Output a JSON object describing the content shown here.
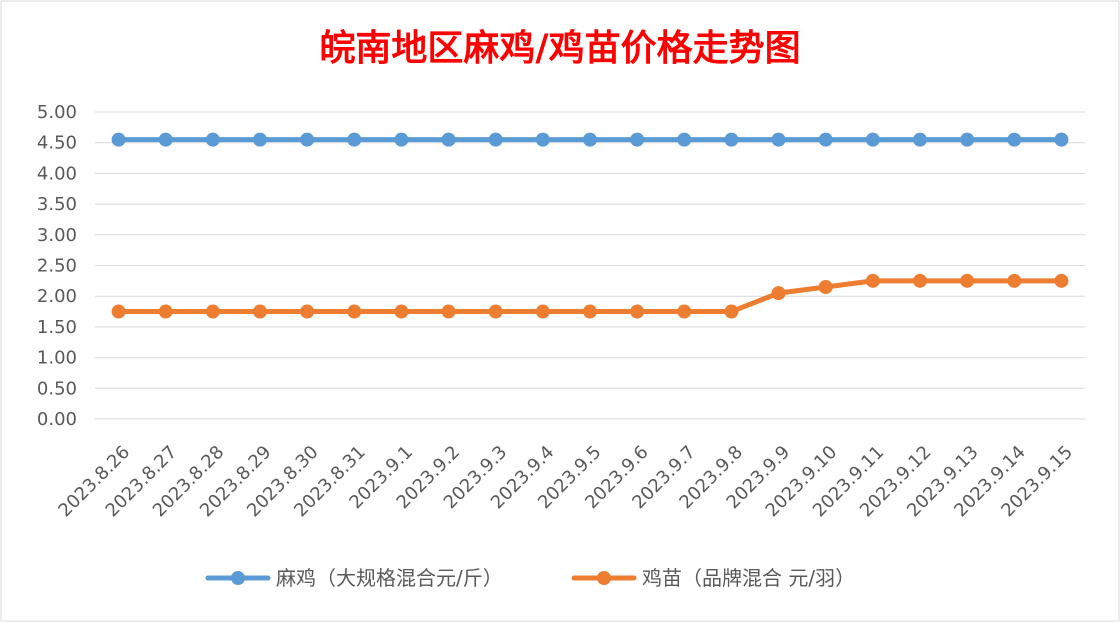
{
  "chart_data": {
    "type": "line",
    "title": "皖南地区麻鸡/鸡苗价格走势图",
    "categories": [
      "2023.8.26",
      "2023.8.27",
      "2023.8.28",
      "2023.8.29",
      "2023.8.30",
      "2023.8.31",
      "2023.9.1",
      "2023.9.2",
      "2023.9.3",
      "2023.9.4",
      "2023.9.5",
      "2023.9.6",
      "2023.9.7",
      "2023.9.8",
      "2023.9.9",
      "2023.9.10",
      "2023.9.11",
      "2023.9.12",
      "2023.9.13",
      "2023.9.14",
      "2023.9.15"
    ],
    "y_ticks": [
      "0.00",
      "0.50",
      "1.00",
      "1.50",
      "2.00",
      "2.50",
      "3.00",
      "3.50",
      "4.00",
      "4.50",
      "5.00"
    ],
    "ylim": [
      0,
      5
    ],
    "grid": true,
    "legend_position": "bottom",
    "series": [
      {
        "name": "麻鸡（大规格混合元/斤）",
        "color": "#5b9bd5",
        "values": [
          4.55,
          4.55,
          4.55,
          4.55,
          4.55,
          4.55,
          4.55,
          4.55,
          4.55,
          4.55,
          4.55,
          4.55,
          4.55,
          4.55,
          4.55,
          4.55,
          4.55,
          4.55,
          4.55,
          4.55,
          4.55
        ]
      },
      {
        "name": "鸡苗（品牌混合 元/羽）",
        "color": "#ed7d31",
        "values": [
          1.75,
          1.75,
          1.75,
          1.75,
          1.75,
          1.75,
          1.75,
          1.75,
          1.75,
          1.75,
          1.75,
          1.75,
          1.75,
          1.75,
          2.05,
          2.15,
          2.25,
          2.25,
          2.25,
          2.25,
          2.25
        ]
      }
    ]
  }
}
